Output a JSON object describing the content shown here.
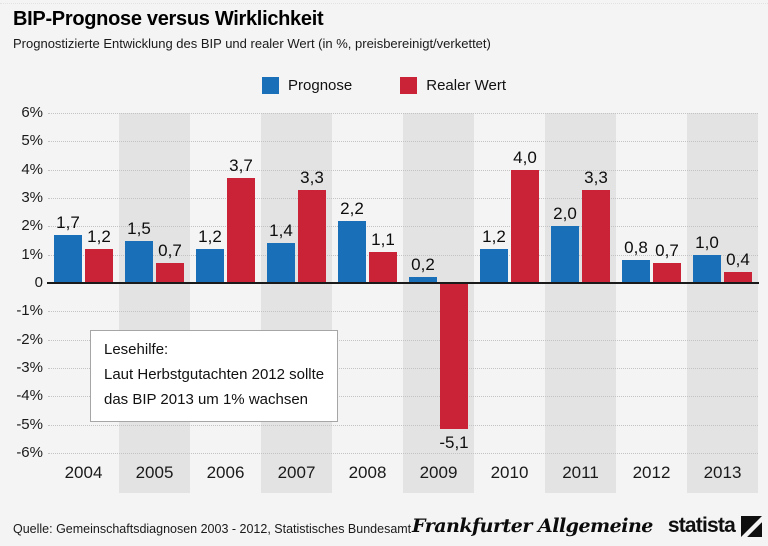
{
  "header": {
    "title": "BIP-Prognose versus Wirklichkeit",
    "subtitle": "Prognostizierte Entwicklung des BIP und realer Wert (in %, preisbereinigt/verkettet)"
  },
  "colors": {
    "prognose_blue": "#1a70b8",
    "realer_wert_red": "#ca2337",
    "column_band": "#e3e3e3",
    "background": "#f4f4f4"
  },
  "chart_data": {
    "type": "bar",
    "title": "BIP-Prognose versus Wirklichkeit",
    "categories": [
      "2004",
      "2005",
      "2006",
      "2007",
      "2008",
      "2009",
      "2010",
      "2011",
      "2012",
      "2013"
    ],
    "series": [
      {
        "name": "Prognose",
        "color": "#1a70b8",
        "values": [
          1.7,
          1.5,
          1.2,
          1.4,
          2.2,
          0.2,
          1.2,
          2.0,
          0.8,
          1.0
        ],
        "labels": [
          "1,7",
          "1,5",
          "1,2",
          "1,4",
          "2,2",
          "0,2",
          "1,2",
          "2,0",
          "0,8",
          "1,0"
        ]
      },
      {
        "name": "Realer Wert",
        "color": "#ca2337",
        "values": [
          1.2,
          0.7,
          3.7,
          3.3,
          1.1,
          -5.1,
          4.0,
          3.3,
          0.7,
          0.4
        ],
        "labels": [
          "1,2",
          "0,7",
          "3,7",
          "3,3",
          "1,1",
          "-5,1",
          "4,0",
          "3,3",
          "0,7",
          "0,4"
        ]
      }
    ],
    "ylim": [
      -6,
      6
    ],
    "yticks": [
      "6%",
      "5%",
      "4%",
      "3%",
      "2%",
      "1%",
      "0",
      "-1%",
      "-2%",
      "-3%",
      "-4%",
      "-5%",
      "-6%"
    ],
    "grid": "horizontal-dotted",
    "legend_position": "top-center",
    "annotation": [
      "Lesehilfe:",
      "Laut Herbstgutachten 2012 sollte",
      "das BIP 2013 um 1% wachsen"
    ]
  },
  "footer": {
    "source": "Quelle: Gemeinschaftsdiagnosen 2003 - 2012, Statistisches Bundesamt",
    "faz_logo": "Frankfurter Allgemeine",
    "statista_logo": "statista"
  }
}
